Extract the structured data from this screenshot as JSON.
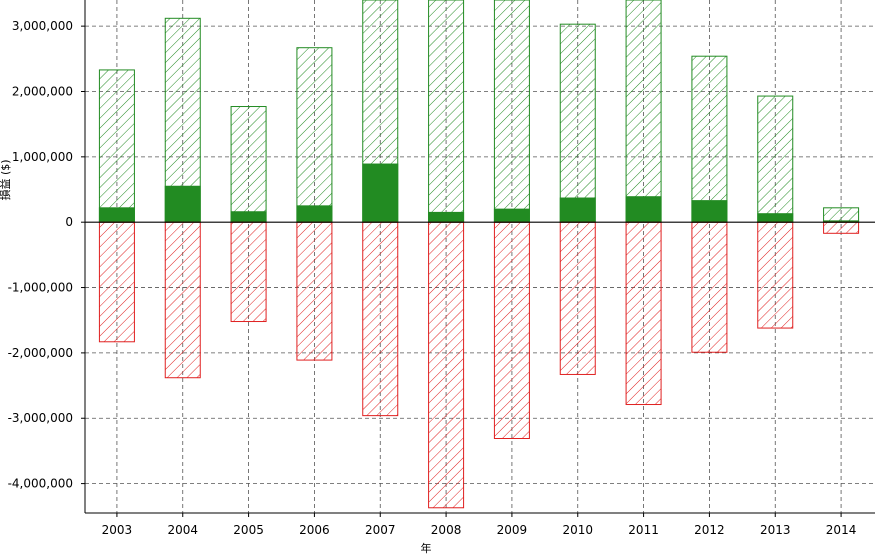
{
  "chart_data": {
    "type": "bar",
    "title": "",
    "xlabel": "年",
    "ylabel": "損益 ($)",
    "categories": [
      "2003",
      "2004",
      "2005",
      "2006",
      "2007",
      "2008",
      "2009",
      "2010",
      "2011",
      "2012",
      "2013",
      "2014"
    ],
    "series": [
      {
        "values": [
          2330000,
          3120000,
          1770000,
          2670000,
          3400000,
          3400000,
          3400000,
          3030000,
          3400000,
          2540000,
          1930000,
          220000
        ],
        "style": "hatched",
        "color": "#228b22"
      },
      {
        "values": [
          220000,
          550000,
          160000,
          250000,
          890000,
          150000,
          200000,
          370000,
          390000,
          330000,
          130000,
          20000
        ],
        "style": "solid",
        "color": "#228b22"
      },
      {
        "values": [
          -1830000,
          -2380000,
          -1520000,
          -2110000,
          -2960000,
          -4370000,
          -3310000,
          -2330000,
          -2790000,
          -1990000,
          -1620000,
          -170000
        ],
        "style": "hatched",
        "color": "#e02020"
      }
    ],
    "ylim": [
      -4450000,
      3400000
    ],
    "yticks": [
      -4000000,
      -3000000,
      -2000000,
      -1000000,
      0,
      1000000,
      2000000,
      3000000
    ],
    "ytick_labels": [
      "-4,000,000",
      "-3,000,000",
      "-2,000,000",
      "-1,000,000",
      "0",
      "1,000,000",
      "2,000,000",
      "3,000,000"
    ],
    "grid": true
  }
}
